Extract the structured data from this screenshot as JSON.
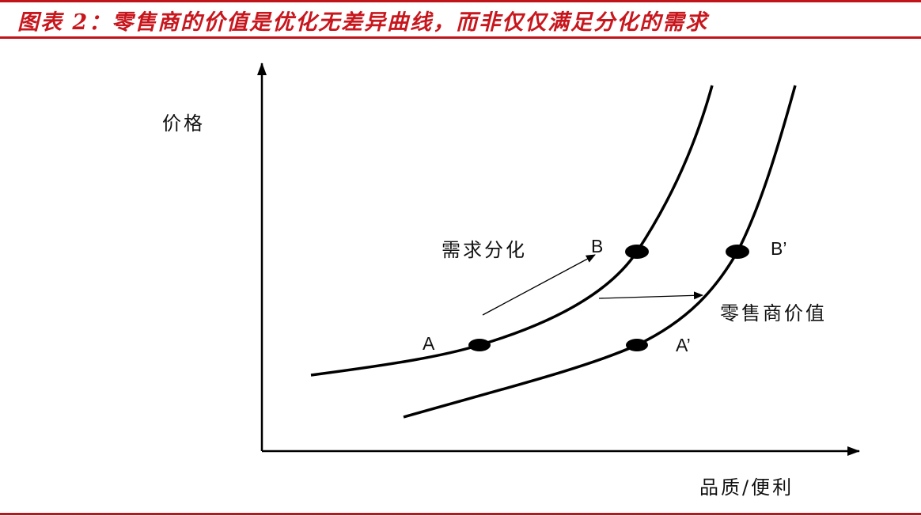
{
  "title": "图表 2：零售商的价值是优化无差异曲线，而非仅仅满足分化的需求",
  "accent_color": "#c8161d",
  "diagram": {
    "y_axis_label": "价格",
    "x_axis_label": "品质/便利",
    "arrow_labels": {
      "demand": "需求分化",
      "retailer": "零售商价值"
    },
    "points": {
      "A": "A",
      "B": "B",
      "A_prime": "A’",
      "B_prime": "B’"
    }
  }
}
